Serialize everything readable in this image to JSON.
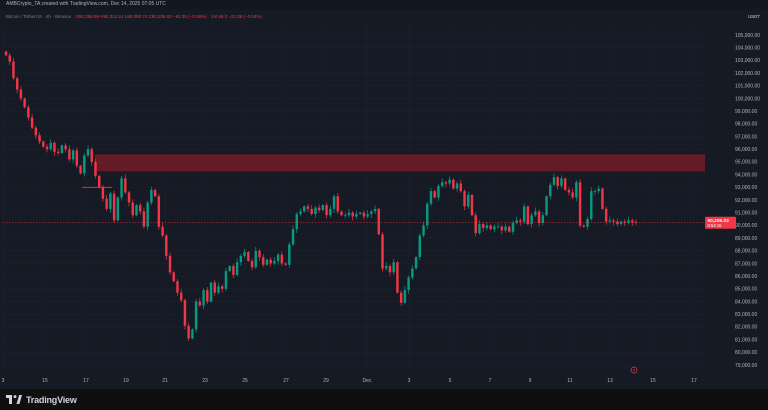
{
  "window": {
    "credit": "AMBCrypto_TA created with TradingView.com, Dec 14, 2025 07:05 UTC"
  },
  "legend": {
    "symbol": "Bitcoin / TetherUS · 4h · Binance",
    "ohlc": "O90,256.99  H90,324.24  L90,050.74  C90,206.03  −92.35 (−0.06%)",
    "volume": "Vol 96.2  −22.38 (−0.04%)"
  },
  "price_axis": {
    "currency": "USDT",
    "ticks": [
      "105,000.00",
      "104,000.00",
      "103,000.00",
      "102,000.00",
      "101,000.00",
      "100,000.00",
      "99,000.00",
      "98,000.00",
      "97,000.00",
      "96,000.00",
      "95,000.00",
      "94,000.00",
      "93,000.00",
      "92,000.00",
      "91,000.00",
      "90,000.00",
      "89,000.00",
      "88,000.00",
      "87,000.00",
      "86,000.00",
      "85,000.00",
      "84,000.00",
      "83,000.00",
      "82,000.00",
      "81,000.00",
      "80,000.00",
      "79,000.00"
    ],
    "current_price": "90,206.03",
    "countdown": "0:54:15"
  },
  "time_axis": {
    "ticks": [
      "3",
      "15",
      "17",
      "19",
      "21",
      "23",
      "25",
      "27",
      "29",
      "Dec",
      "3",
      "5",
      "7",
      "9",
      "11",
      "13",
      "15",
      "17"
    ]
  },
  "colors": {
    "background": "#161a25",
    "up": "#089981",
    "down": "#f23645",
    "zone": "#7a1c28"
  },
  "footer": {
    "brand": "TradingView"
  },
  "chart_data": {
    "type": "candlestick",
    "timeframe": "4h",
    "ylim": [
      79000,
      105500
    ],
    "resistance_zone": [
      94250,
      95600
    ],
    "support_line": 93000,
    "x_start": "2025-11-11",
    "closes": [
      103400,
      102900,
      101600,
      100700,
      100000,
      99300,
      98500,
      97700,
      97100,
      96600,
      96200,
      96000,
      96500,
      95800,
      95700,
      96300,
      96000,
      95200,
      95900,
      94700,
      94100,
      95500,
      96000,
      95000,
      93900,
      93000,
      92100,
      91300,
      92500,
      90400,
      92200,
      93700,
      92600,
      91800,
      90800,
      91600,
      91100,
      89900,
      91800,
      92800,
      92300,
      89900,
      89200,
      87600,
      86300,
      85600,
      84700,
      84100,
      82100,
      81100,
      81800,
      84000,
      83700,
      84900,
      84000,
      85500,
      84700,
      85200,
      85000,
      86400,
      86800,
      86100,
      87100,
      87600,
      87900,
      87200,
      86700,
      88000,
      87500,
      86900,
      87300,
      87000,
      87200,
      87700,
      87000,
      86900,
      88500,
      89700,
      90900,
      91100,
      91500,
      91300,
      90900,
      91400,
      91200,
      91600,
      90800,
      91300,
      92300,
      91100,
      90800,
      90800,
      91000,
      90700,
      90900,
      91000,
      90700,
      90900,
      91100,
      91300,
      89300,
      86600,
      86800,
      86300,
      87100,
      84700,
      83900,
      84900,
      85900,
      86600,
      87500,
      89200,
      90000,
      91700,
      92700,
      92200,
      93100,
      93400,
      93300,
      93600,
      92900,
      93300,
      92700,
      91500,
      92400,
      90800,
      89400,
      90100,
      89800,
      90000,
      89700,
      89900,
      89900,
      89600,
      89900,
      89500,
      90200,
      90400,
      90300,
      91500,
      90100,
      90800,
      91100,
      90200,
      90800,
      92300,
      93200,
      93800,
      93100,
      93700,
      92800,
      92600,
      92200,
      93400,
      90000,
      89900,
      90500,
      92700,
      92700,
      92900,
      91300,
      90300,
      90400,
      90300,
      90100,
      90300,
      90200,
      90400,
      90250,
      90206
    ]
  }
}
